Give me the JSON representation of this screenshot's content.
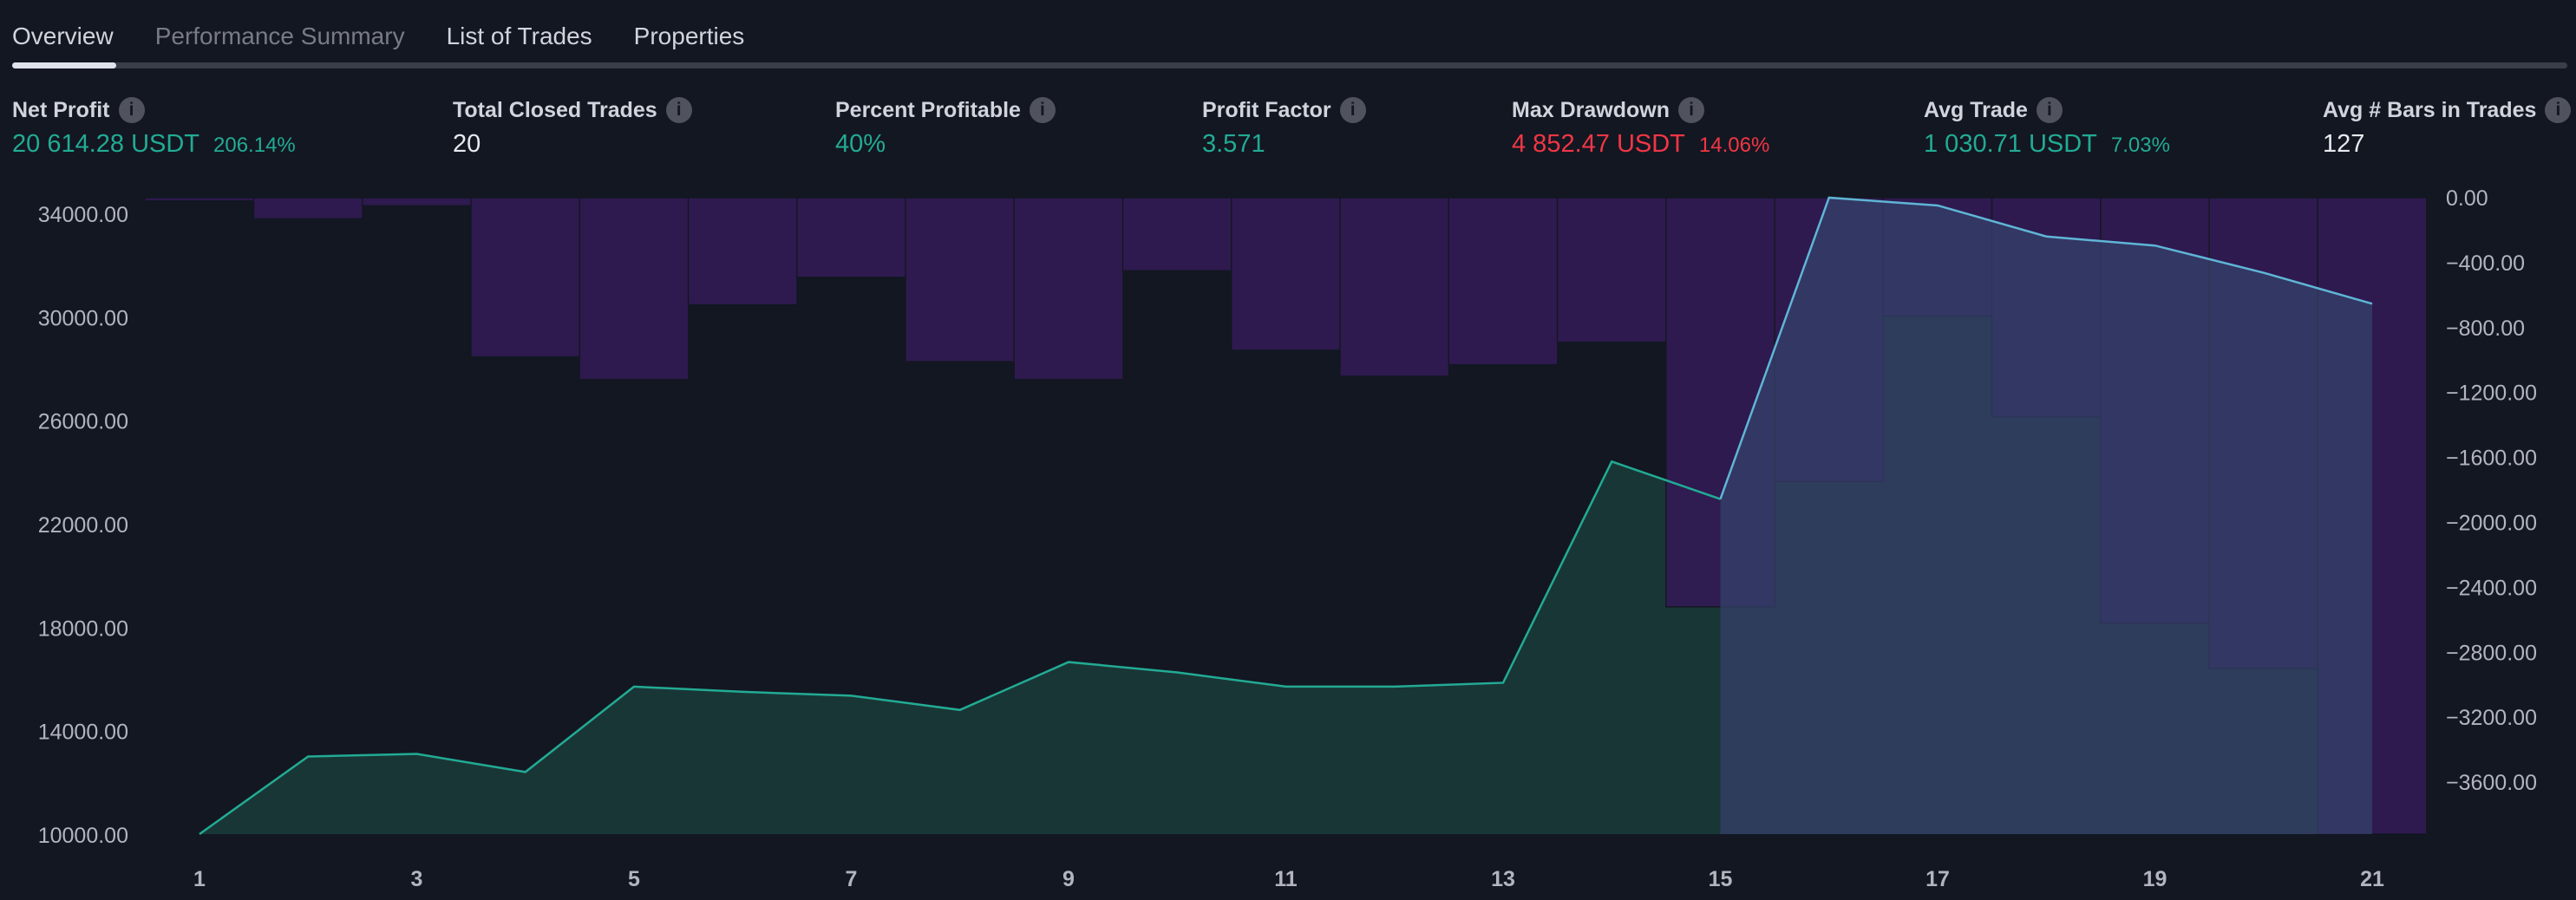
{
  "tabs": [
    {
      "label": "Overview",
      "active": true
    },
    {
      "label": "Performance Summary",
      "active": false
    },
    {
      "label": "List of Trades",
      "active": false
    },
    {
      "label": "Properties",
      "active": false
    }
  ],
  "stats": {
    "net_profit": {
      "label": "Net Profit",
      "value": "20 614.28 USDT",
      "pct": "206.14%"
    },
    "total_closed_trades": {
      "label": "Total Closed Trades",
      "value": "20"
    },
    "percent_profitable": {
      "label": "Percent Profitable",
      "value": "40%"
    },
    "profit_factor": {
      "label": "Profit Factor",
      "value": "3.571"
    },
    "max_drawdown": {
      "label": "Max Drawdown",
      "value": "4 852.47 USDT",
      "pct": "14.06%"
    },
    "avg_trade": {
      "label": "Avg Trade",
      "value": "1 030.71 USDT",
      "pct": "7.03%"
    },
    "avg_bars": {
      "label": "Avg # Bars in Trades",
      "value": "127"
    }
  },
  "info_icon_glyph": "i",
  "colors": {
    "background": "#131722",
    "equity_line": "#22ab94",
    "equity_fill": "#1b3a38",
    "drawdown_bar": "#311b54",
    "buyhold_line": "#5fb5d6",
    "buyhold_fill": "#36406a",
    "axis_text": "#b2b5be",
    "red": "#f23645"
  },
  "chart_data": {
    "type": "area",
    "x": [
      1,
      2,
      3,
      4,
      5,
      6,
      7,
      8,
      9,
      10,
      11,
      12,
      13,
      14,
      15,
      16,
      17,
      18,
      19,
      20,
      21
    ],
    "x_tick_labels": [
      "1",
      "3",
      "5",
      "7",
      "9",
      "11",
      "13",
      "15",
      "17",
      "19",
      "21"
    ],
    "left_axis": {
      "ticks": [
        "34000.00",
        "30000.00",
        "26000.00",
        "22000.00",
        "18000.00",
        "14000.00",
        "10000.00"
      ],
      "range": [
        10000,
        34600
      ]
    },
    "right_axis": {
      "ticks": [
        "0.00",
        "−400.00",
        "−800.00",
        "−1200.00",
        "−1600.00",
        "−2000.00",
        "−2400.00",
        "−2800.00",
        "−3200.00",
        "−3600.00"
      ],
      "range": [
        -3920,
        0
      ]
    },
    "series": [
      {
        "kind": "equity",
        "axis": "left",
        "values": [
          10000,
          13000,
          13100,
          12400,
          15700,
          15500,
          15350,
          14800,
          16650,
          16250,
          15700,
          15700,
          15850,
          24400,
          22950,
          34600,
          34300,
          33100,
          32750,
          31700,
          30500
        ]
      },
      {
        "kind": "buy_hold",
        "axis": "left",
        "values": [
          null,
          null,
          null,
          null,
          null,
          null,
          null,
          null,
          null,
          null,
          null,
          null,
          null,
          null,
          22950,
          34600,
          34300,
          33100,
          32750,
          31700,
          30500
        ]
      },
      {
        "kind": "drawdown",
        "axis": "right",
        "type": "bar",
        "values": [
          -20,
          -130,
          -50,
          -980,
          -1120,
          -660,
          -490,
          -1010,
          -1120,
          -450,
          -940,
          -1100,
          -1030,
          -890,
          -2520,
          -1750,
          -730,
          -1350,
          -2620,
          -2900,
          -3920
        ]
      }
    ]
  }
}
